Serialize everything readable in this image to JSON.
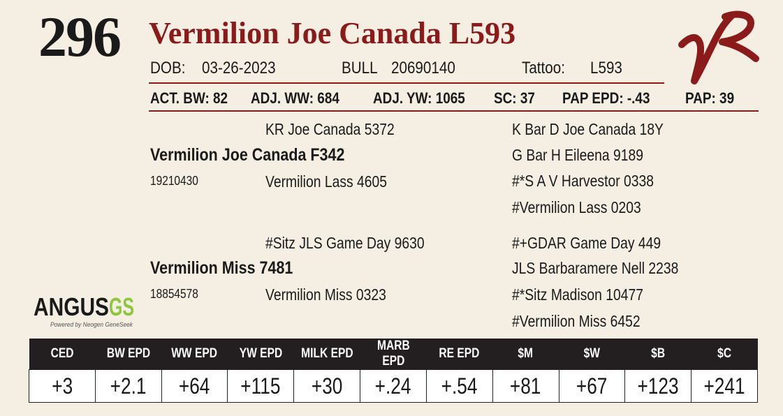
{
  "lot_number": "296",
  "animal_name": "Vermilion Joe Canada L593",
  "info": {
    "dob_label": "DOB:",
    "dob_value": "03-26-2023",
    "bull_label": "BULL",
    "reg_number": "20690140",
    "tattoo_label": "Tattoo:",
    "tattoo_value": "L593"
  },
  "measures": {
    "act_bw": "ACT. BW: 82",
    "adj_ww": "ADJ. WW: 684",
    "adj_yw": "ADJ. YW: 1065",
    "sc": "SC: 37",
    "pap_epd": "PAP EPD: -.43",
    "pap": "PAP: 39"
  },
  "pedigree": {
    "sire": {
      "name": "Vermilion Joe Canada F342",
      "reg": "19210430",
      "sire": "KR Joe Canada 5372",
      "dam": "Vermilion Lass 4605",
      "sire_sire": "K Bar D Joe Canada 18Y",
      "sire_dam": "G Bar H Eileena 9189",
      "dam_sire": "#*S A V Harvestor 0338",
      "dam_dam": "#Vermilion Lass 0203"
    },
    "dam": {
      "name": "Vermilion Miss 7481",
      "reg": "18854578",
      "sire": "#Sitz JLS Game Day 9630",
      "dam": "Vermilion Miss 0323",
      "sire_sire": "#+GDAR Game Day 449",
      "sire_dam": "JLS Barbaramere Nell 2238",
      "dam_sire": "#*Sitz Madison 10477",
      "dam_dam": "#Vermilion Miss 6452"
    }
  },
  "logos": {
    "angus_text": "ANGUS",
    "angus_gs": "GS",
    "angus_tagline": "Powered by Neogen GeneSeek",
    "brand_icon": "vr-brand-icon"
  },
  "epd": {
    "headers": [
      "CED",
      "BW EPD",
      "WW EPD",
      "YW EPD",
      "MILK EPD",
      "MARB EPD",
      "RE EPD",
      "$M",
      "$W",
      "$B",
      "$C"
    ],
    "values": [
      "+3",
      "+2.1",
      "+64",
      "+115",
      "+30",
      "+.24",
      "+.54",
      "+81",
      "+67",
      "+123",
      "+241"
    ]
  },
  "colors": {
    "accent": "#8b1a1a",
    "background": "#f4efe2",
    "header_bg": "#231f20"
  }
}
